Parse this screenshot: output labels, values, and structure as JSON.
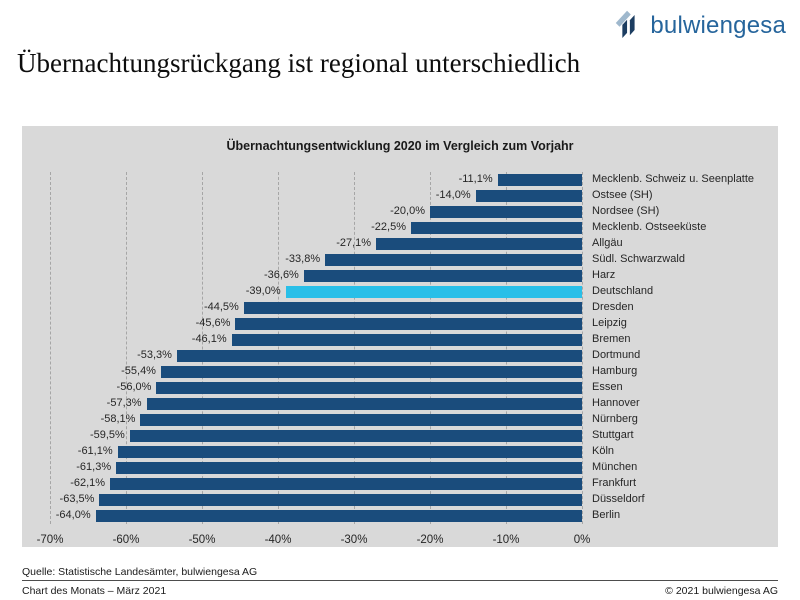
{
  "header": {
    "title": "Übernachtungsrückgang ist regional unterschiedlich",
    "logo_text": "bulwiengesa"
  },
  "chart_data": {
    "type": "bar",
    "orientation": "horizontal",
    "title": "Übernachtungsentwicklung 2020 im Vergleich zum Vorjahr",
    "categories": [
      "Mecklenb. Schweiz u. Seenplatte",
      "Ostsee (SH)",
      "Nordsee (SH)",
      "Mecklenb. Ostseeküste",
      "Allgäu",
      "Südl. Schwarzwald",
      "Harz",
      "Deutschland",
      "Dresden",
      "Leipzig",
      "Bremen",
      "Dortmund",
      "Hamburg",
      "Essen",
      "Hannover",
      "Nürnberg",
      "Stuttgart",
      "Köln",
      "München",
      "Frankfurt",
      "Düsseldorf",
      "Berlin"
    ],
    "values": [
      -11.1,
      -14.0,
      -20.0,
      -22.5,
      -27.1,
      -33.8,
      -36.6,
      -39.0,
      -44.5,
      -45.6,
      -46.1,
      -53.3,
      -55.4,
      -56.0,
      -57.3,
      -58.1,
      -59.5,
      -61.1,
      -61.3,
      -62.1,
      -63.5,
      -64.0
    ],
    "value_labels": [
      "-11,1%",
      "-14,0%",
      "-20,0%",
      "-22,5%",
      "-27,1%",
      "-33,8%",
      "-36,6%",
      "-39,0%",
      "-44,5%",
      "-45,6%",
      "-46,1%",
      "-53,3%",
      "-55,4%",
      "-56,0%",
      "-57,3%",
      "-58,1%",
      "-59,5%",
      "-61,1%",
      "-61,3%",
      "-62,1%",
      "-63,5%",
      "-64,0%"
    ],
    "highlight_category": "Deutschland",
    "xlim": [
      -70,
      0
    ],
    "x_ticks": [
      "-70%",
      "-60%",
      "-50%",
      "-40%",
      "-30%",
      "-20%",
      "-10%",
      "0%"
    ],
    "grid": true,
    "legend": "none",
    "colors": {
      "bar": "#1A4C7C",
      "highlight": "#29BFE8",
      "plot_background": "#D9D9D9",
      "gridline": "#A6A6A6",
      "logo_blue": "#26659C",
      "logo_dark": "#1C3D61",
      "logo_light": "#9FB8CD"
    }
  },
  "footer": {
    "source": "Quelle: Statistische Landesämter, bulwiengesa AG",
    "left": "Chart des Monats – März 2021",
    "right": "© 2021 bulwiengesa AG"
  }
}
